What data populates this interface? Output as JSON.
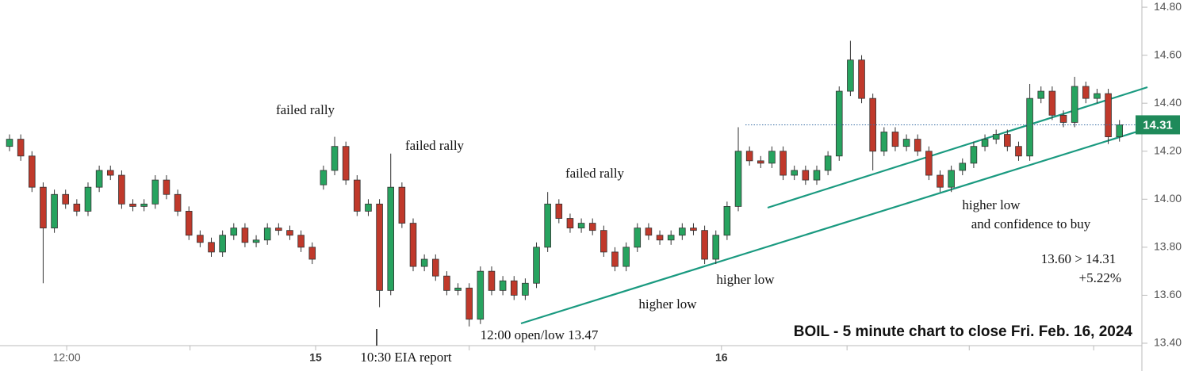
{
  "chart_data": {
    "type": "candlestick",
    "title": "BOIL - 5 minute chart to close Fri. Feb. 16, 2024",
    "annotations": [
      "failed rally",
      "failed rally",
      "failed rally",
      "12:00 open/low 13.47",
      "higher low",
      "higher low",
      "higher low",
      "and confidence to buy",
      "13.60 > 14.31",
      "+5.22%",
      "10:30 EIA report"
    ],
    "up_color": "#27a35f",
    "down_color": "#c0392b",
    "open": [
      14.22,
      14.25,
      14.18,
      14.05,
      13.88,
      14.02,
      13.98,
      13.95,
      14.05,
      14.12,
      14.1,
      13.98,
      13.97,
      13.98,
      14.08,
      14.02,
      13.95,
      13.85,
      13.82,
      13.78,
      13.85,
      13.88,
      13.82,
      13.83,
      13.88,
      13.87,
      13.85,
      13.8,
      14.06,
      14.12,
      14.22,
      14.08,
      13.95,
      13.98,
      13.62,
      14.05,
      13.9,
      13.72,
      13.75,
      13.68,
      13.62,
      13.63,
      13.5,
      13.7,
      13.62,
      13.66,
      13.6,
      13.65,
      13.8,
      13.98,
      13.92,
      13.88,
      13.9,
      13.87,
      13.78,
      13.72,
      13.8,
      13.88,
      13.85,
      13.83,
      13.85,
      13.88,
      13.87,
      13.75,
      13.85,
      13.97,
      14.2,
      14.16,
      14.15,
      14.2,
      14.1,
      14.12,
      14.08,
      14.12,
      14.18,
      14.45,
      14.58,
      14.42,
      14.2,
      14.28,
      14.22,
      14.25,
      14.2,
      14.1,
      14.05,
      14.12,
      14.15,
      14.22,
      14.25,
      14.27,
      14.22,
      14.18,
      14.42,
      14.45,
      14.35,
      14.32,
      14.47,
      14.42,
      14.44,
      14.26
    ],
    "high": [
      14.27,
      14.27,
      14.2,
      14.07,
      14.04,
      14.04,
      14.0,
      14.07,
      14.14,
      14.14,
      14.12,
      14.0,
      14.0,
      14.1,
      14.1,
      14.04,
      13.97,
      13.87,
      13.84,
      13.87,
      13.9,
      13.9,
      13.85,
      13.9,
      13.9,
      13.89,
      13.87,
      13.82,
      14.14,
      14.26,
      14.24,
      14.1,
      14.0,
      14.0,
      14.19,
      14.07,
      13.92,
      13.77,
      13.77,
      13.7,
      13.65,
      13.65,
      13.72,
      13.72,
      13.68,
      13.68,
      13.67,
      13.82,
      14.03,
      14.0,
      13.94,
      13.92,
      13.92,
      13.89,
      13.8,
      13.82,
      13.9,
      13.9,
      13.87,
      13.87,
      13.9,
      13.9,
      13.89,
      13.87,
      13.99,
      14.3,
      14.22,
      14.18,
      14.22,
      14.22,
      14.14,
      14.14,
      14.14,
      14.2,
      14.47,
      14.66,
      14.6,
      14.44,
      14.3,
      14.3,
      14.27,
      14.27,
      14.22,
      14.12,
      14.14,
      14.17,
      14.24,
      14.27,
      14.29,
      14.29,
      14.24,
      14.48,
      14.47,
      14.47,
      14.37,
      14.51,
      14.49,
      14.46,
      14.46,
      14.33
    ],
    "low": [
      14.2,
      14.16,
      14.03,
      13.65,
      13.86,
      13.96,
      13.93,
      13.93,
      14.03,
      14.08,
      13.96,
      13.95,
      13.95,
      13.96,
      14.0,
      13.93,
      13.83,
      13.8,
      13.76,
      13.76,
      13.83,
      13.8,
      13.8,
      13.81,
      13.85,
      13.83,
      13.78,
      13.73,
      14.04,
      14.1,
      14.06,
      13.93,
      13.93,
      13.55,
      13.6,
      13.88,
      13.7,
      13.7,
      13.66,
      13.6,
      13.6,
      13.47,
      13.48,
      13.6,
      13.6,
      13.58,
      13.58,
      13.63,
      13.78,
      13.9,
      13.86,
      13.86,
      13.85,
      13.76,
      13.7,
      13.7,
      13.78,
      13.83,
      13.81,
      13.81,
      13.83,
      13.85,
      13.73,
      13.73,
      13.83,
      13.95,
      14.14,
      14.13,
      14.13,
      14.08,
      14.08,
      14.06,
      14.06,
      14.1,
      14.16,
      14.43,
      14.4,
      14.12,
      14.18,
      14.2,
      14.2,
      14.18,
      14.08,
      14.03,
      14.03,
      14.1,
      14.13,
      14.2,
      14.23,
      14.2,
      14.16,
      14.16,
      14.4,
      14.33,
      14.3,
      14.3,
      14.4,
      14.4,
      14.23,
      14.24
    ],
    "close": [
      14.25,
      14.18,
      14.05,
      13.88,
      14.02,
      13.98,
      13.95,
      14.05,
      14.12,
      14.1,
      13.98,
      13.97,
      13.98,
      14.08,
      14.02,
      13.95,
      13.85,
      13.82,
      13.78,
      13.85,
      13.88,
      13.82,
      13.83,
      13.88,
      13.87,
      13.85,
      13.8,
      13.75,
      14.12,
      14.22,
      14.08,
      13.95,
      13.98,
      13.62,
      14.05,
      13.9,
      13.72,
      13.75,
      13.68,
      13.62,
      13.63,
      13.5,
      13.7,
      13.62,
      13.66,
      13.6,
      13.65,
      13.8,
      13.98,
      13.92,
      13.88,
      13.9,
      13.87,
      13.78,
      13.72,
      13.8,
      13.88,
      13.85,
      13.83,
      13.85,
      13.88,
      13.87,
      13.75,
      13.85,
      13.97,
      14.2,
      14.16,
      14.15,
      14.2,
      14.1,
      14.12,
      14.08,
      14.12,
      14.18,
      14.45,
      14.58,
      14.42,
      14.2,
      14.28,
      14.22,
      14.25,
      14.2,
      14.1,
      14.05,
      14.12,
      14.15,
      14.22,
      14.25,
      14.27,
      14.22,
      14.18,
      14.42,
      14.45,
      14.35,
      14.32,
      14.47,
      14.42,
      14.44,
      14.26,
      14.31
    ],
    "xlim": [
      -0.85,
      101
    ],
    "xticks": [
      {
        "value": 5.1,
        "label": "12:00"
      },
      {
        "value": 27.3,
        "label": "15"
      },
      {
        "value": 63.5,
        "label": "16"
      }
    ],
    "xminor_ticks": [
      16.1,
      41,
      52.2,
      74.7,
      85.6,
      96.7
    ],
    "ylim": [
      13.39,
      14.83
    ],
    "yticks": [
      {
        "value": 13.4,
        "label": "13.40"
      },
      {
        "value": 13.6,
        "label": "13.60"
      },
      {
        "value": 13.8,
        "label": "13.80"
      },
      {
        "value": 14.0,
        "label": "14.00"
      },
      {
        "value": 14.2,
        "label": "14.20"
      },
      {
        "value": 14.4,
        "label": "14.40"
      },
      {
        "value": 14.6,
        "label": "14.60"
      },
      {
        "value": 14.8,
        "label": "14.80"
      }
    ],
    "last_price": {
      "value": 14.31,
      "label": "14.31"
    },
    "last_price_color": "#1f8a5a"
  }
}
